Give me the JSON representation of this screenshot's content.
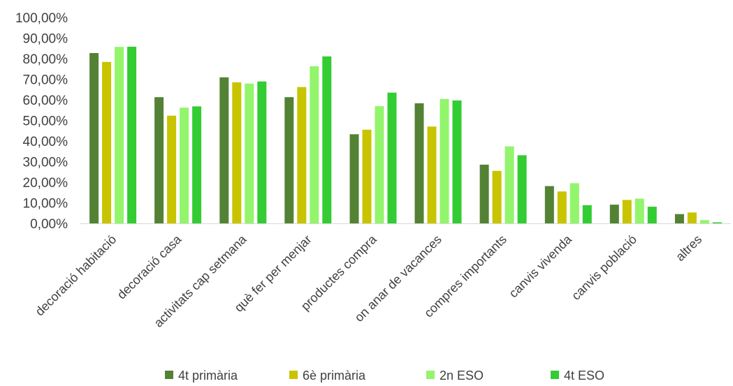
{
  "chart_data": {
    "type": "bar",
    "title": "",
    "xlabel": "",
    "ylabel": "",
    "ylim": [
      0,
      100
    ],
    "y_ticks": [
      "0,00%",
      "10,00%",
      "20,00%",
      "30,00%",
      "40,00%",
      "50,00%",
      "60,00%",
      "70,00%",
      "80,00%",
      "90,00%",
      "100,00%"
    ],
    "grid": false,
    "legend_position": "bottom",
    "categories": [
      "decoració habitació",
      "decoració casa",
      "activitats cap setmana",
      "què fer per menjar",
      "productes compra",
      "on anar de vacances",
      "compres importants",
      "canvis vivenda",
      "canvis població",
      "altres"
    ],
    "series": [
      {
        "name": "4t primària",
        "color": "#548235",
        "values": [
          82.7,
          61.3,
          70.9,
          61.3,
          43.3,
          58.3,
          28.5,
          18.1,
          9.1,
          4.5
        ]
      },
      {
        "name": "6è primària",
        "color": "#c9c400",
        "values": [
          78.4,
          52.3,
          68.5,
          66.2,
          45.5,
          47.0,
          25.5,
          15.5,
          11.4,
          5.3
        ]
      },
      {
        "name": "2n ESO",
        "color": "#92f56b",
        "values": [
          85.7,
          56.2,
          67.9,
          76.3,
          56.9,
          60.4,
          37.4,
          19.5,
          12.0,
          1.6
        ]
      },
      {
        "name": "4t ESO",
        "color": "#33cc33",
        "values": [
          85.8,
          56.8,
          68.9,
          81.1,
          63.5,
          59.7,
          33.1,
          8.8,
          8.1,
          0.5
        ]
      }
    ]
  }
}
